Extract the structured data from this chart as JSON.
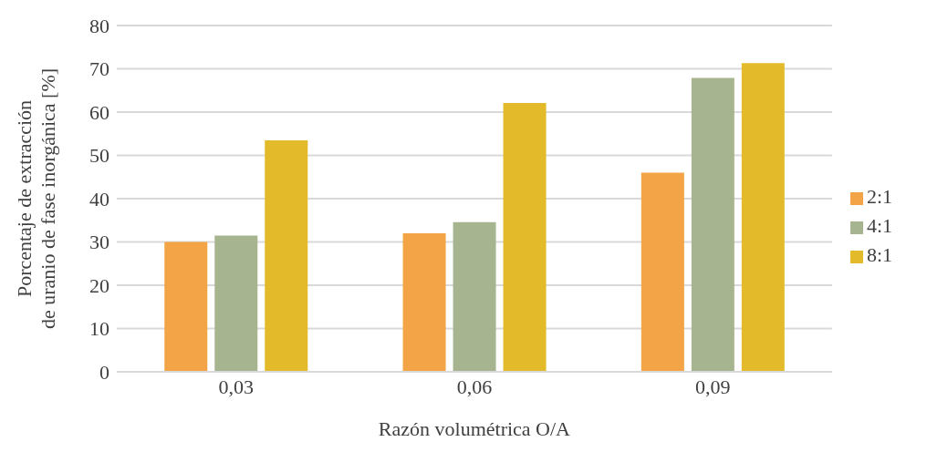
{
  "chart_data": {
    "type": "bar",
    "xlabel": "Razón volumétrica O/A",
    "ylabel": "Porcentaje de extracción de uranio de fase inorgánica [%]",
    "categories": [
      "0,03",
      "0,06",
      "0,09"
    ],
    "series": [
      {
        "name": "2:1",
        "color": "#f2a446",
        "values": [
          30,
          32,
          46
        ]
      },
      {
        "name": "4:1",
        "color": "#a7b490",
        "values": [
          31.5,
          34.6,
          67.9
        ]
      },
      {
        "name": "8:1",
        "color": "#e3bb2a",
        "values": [
          53.5,
          62.1,
          71.3
        ]
      }
    ],
    "ylim": [
      0,
      80
    ],
    "yticks": [
      0,
      10,
      20,
      30,
      40,
      50,
      60,
      70,
      80
    ],
    "grid": "y",
    "legend": "right"
  }
}
